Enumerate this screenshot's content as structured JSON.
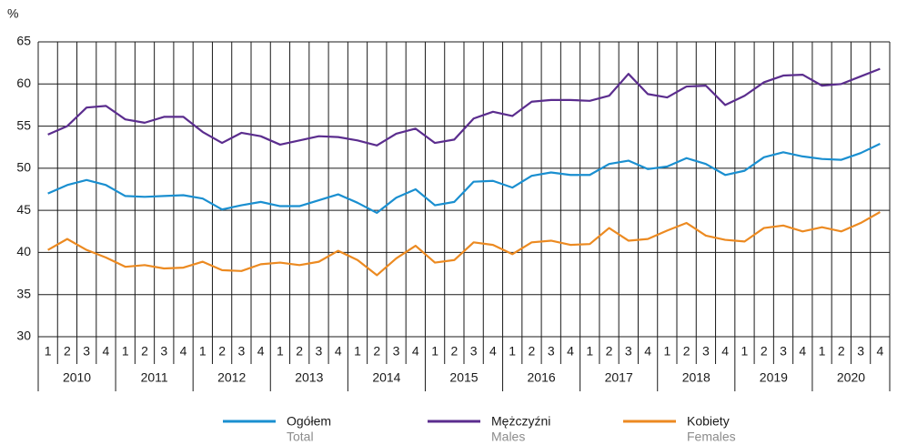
{
  "chart_data": {
    "type": "line",
    "y_label": "%",
    "categories": [
      "1",
      "2",
      "3",
      "4",
      "1",
      "2",
      "3",
      "4",
      "1",
      "2",
      "3",
      "4",
      "1",
      "2",
      "3",
      "4",
      "1",
      "2",
      "3",
      "4",
      "1",
      "2",
      "3",
      "4",
      "1",
      "2",
      "3",
      "4",
      "1",
      "2",
      "3",
      "4",
      "1",
      "2",
      "3",
      "4",
      "1",
      "2",
      "3",
      "4",
      "1",
      "2",
      "3",
      "4"
    ],
    "years": [
      "2010",
      "2011",
      "2012",
      "2013",
      "2014",
      "2015",
      "2016",
      "2017",
      "2018",
      "2019",
      "2020"
    ],
    "ylim": [
      30,
      65
    ],
    "yticks": [
      30,
      35,
      40,
      45,
      50,
      55,
      60,
      65
    ],
    "grid": true,
    "series": [
      {
        "name": "Ogółem",
        "name_en": "Total",
        "color": "#1a8fd0",
        "values": [
          47.0,
          48.0,
          48.6,
          48.0,
          46.7,
          46.6,
          46.7,
          46.8,
          46.4,
          45.1,
          45.6,
          46.0,
          45.5,
          45.5,
          46.2,
          46.9,
          45.9,
          44.7,
          46.5,
          47.5,
          45.6,
          46.0,
          48.4,
          48.5,
          47.7,
          49.1,
          49.5,
          49.2,
          49.2,
          50.5,
          50.9,
          49.9,
          50.2,
          51.2,
          50.5,
          49.2,
          49.7,
          51.3,
          51.9,
          51.4,
          51.1,
          51.0,
          51.8,
          52.9
        ]
      },
      {
        "name": "Mężczyźni",
        "name_en": "Males",
        "color": "#5b2d8e",
        "values": [
          54.0,
          55.0,
          57.2,
          57.4,
          55.8,
          55.4,
          56.1,
          56.1,
          54.3,
          53.0,
          54.2,
          53.8,
          52.8,
          53.3,
          53.8,
          53.7,
          53.3,
          52.7,
          54.1,
          54.7,
          53.0,
          53.4,
          55.9,
          56.7,
          56.2,
          57.9,
          58.1,
          58.1,
          58.0,
          58.6,
          61.2,
          58.8,
          58.4,
          59.7,
          59.8,
          57.5,
          58.6,
          60.2,
          61.0,
          61.1,
          59.8,
          60.0,
          60.9,
          61.8
        ]
      },
      {
        "name": "Kobiety",
        "name_en": "Females",
        "color": "#ec8a21",
        "values": [
          40.3,
          41.6,
          40.3,
          39.4,
          38.3,
          38.5,
          38.1,
          38.2,
          38.9,
          37.9,
          37.8,
          38.6,
          38.8,
          38.5,
          38.9,
          40.2,
          39.1,
          37.3,
          39.3,
          40.8,
          38.8,
          39.1,
          41.2,
          40.9,
          39.8,
          41.2,
          41.4,
          40.9,
          41.0,
          42.9,
          41.4,
          41.6,
          42.6,
          43.5,
          42.0,
          41.5,
          41.3,
          42.9,
          43.2,
          42.5,
          43.0,
          42.5,
          43.5,
          44.8
        ]
      }
    ]
  }
}
